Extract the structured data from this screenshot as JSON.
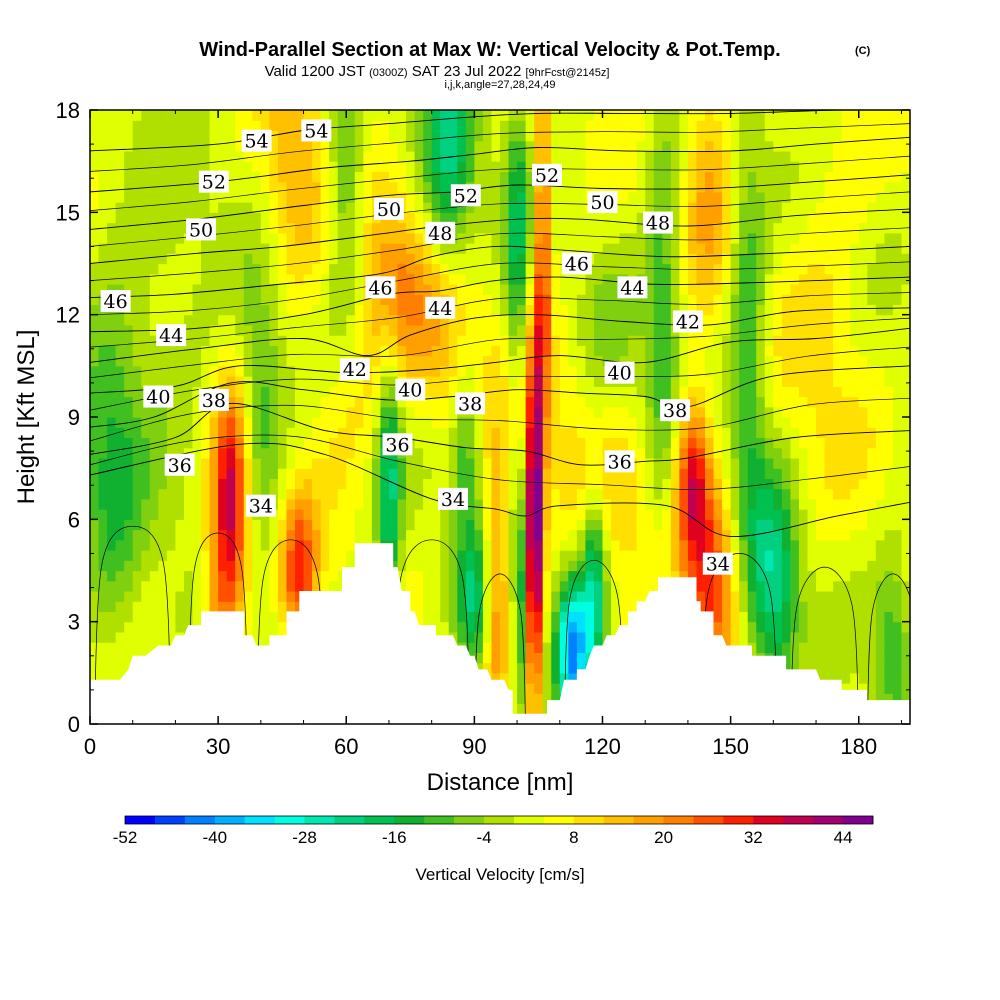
{
  "chart_data": {
    "type": "heatmap",
    "title": "Wind-Parallel Section at Max W: Vertical Velocity & Pot.Temp.",
    "title_mark": "(C)",
    "subtitle": {
      "main_a": "Valid 1200 JST",
      "small_a": "(0300Z)",
      "main_b": "SAT 23 Jul 2022",
      "small_b": "[9hrFcst@2145z]"
    },
    "indices_note": "i,j,k,angle=27,28,24,49",
    "xlabel": "Distance [nm]",
    "ylabel": "Height [Kft MSL]",
    "xlim": [
      0,
      192
    ],
    "ylim": [
      0,
      18
    ],
    "xticks": [
      "0",
      "30",
      "60",
      "90",
      "120",
      "150",
      "180"
    ],
    "yticks": [
      "0",
      "3",
      "6",
      "9",
      "12",
      "15",
      "18"
    ],
    "colorbar": {
      "label": "Vertical Velocity [cm/s]",
      "ticks": [
        "-52",
        "-40",
        "-28",
        "-16",
        "-4",
        "8",
        "20",
        "32",
        "44"
      ],
      "colors": [
        "#0000ff",
        "#0040ff",
        "#0080ff",
        "#00b0ff",
        "#00e0ff",
        "#00ffe0",
        "#00e8b0",
        "#00d080",
        "#00c050",
        "#10b030",
        "#40c020",
        "#80d010",
        "#b0e000",
        "#e0ff00",
        "#ffff00",
        "#ffe000",
        "#ffc000",
        "#ffa000",
        "#ff8000",
        "#ff5000",
        "#ff2000",
        "#e00020",
        "#c00050",
        "#a00070",
        "#800090"
      ]
    },
    "terrain_kft": [
      [
        0,
        1.3
      ],
      [
        7,
        1.3
      ],
      [
        9,
        1.6
      ],
      [
        10,
        2.0
      ],
      [
        13,
        2.0
      ],
      [
        16,
        2.3
      ],
      [
        19,
        2.3
      ],
      [
        20,
        2.6
      ],
      [
        22,
        2.6
      ],
      [
        23,
        2.9
      ],
      [
        26,
        2.9
      ],
      [
        26,
        3.3
      ],
      [
        36,
        3.3
      ],
      [
        36,
        2.6
      ],
      [
        38,
        2.6
      ],
      [
        39,
        2.3
      ],
      [
        42,
        2.3
      ],
      [
        42,
        2.6
      ],
      [
        46,
        2.6
      ],
      [
        46,
        3.3
      ],
      [
        49,
        3.3
      ],
      [
        49,
        3.9
      ],
      [
        59,
        3.9
      ],
      [
        59,
        4.6
      ],
      [
        62,
        4.6
      ],
      [
        62,
        5.3
      ],
      [
        71,
        5.3
      ],
      [
        71,
        4.6
      ],
      [
        72,
        4.6
      ],
      [
        73,
        3.9
      ],
      [
        75,
        3.9
      ],
      [
        75,
        3.3
      ],
      [
        76,
        3.3
      ],
      [
        77,
        2.9
      ],
      [
        81,
        2.9
      ],
      [
        81,
        2.6
      ],
      [
        85,
        2.6
      ],
      [
        86,
        2.3
      ],
      [
        88,
        2.3
      ],
      [
        89,
        2.0
      ],
      [
        90,
        2.0
      ],
      [
        91,
        1.6
      ],
      [
        93,
        1.6
      ],
      [
        94,
        1.3
      ],
      [
        97,
        1.3
      ],
      [
        98,
        1.0
      ],
      [
        99,
        1.0
      ],
      [
        99,
        0.3
      ],
      [
        107,
        0.3
      ],
      [
        107,
        0.7
      ],
      [
        110,
        0.7
      ],
      [
        111,
        1.3
      ],
      [
        114,
        1.3
      ],
      [
        114,
        1.6
      ],
      [
        116,
        1.6
      ],
      [
        117,
        2.0
      ],
      [
        118,
        2.3
      ],
      [
        120,
        2.3
      ],
      [
        121,
        2.6
      ],
      [
        123,
        2.6
      ],
      [
        124,
        2.9
      ],
      [
        126,
        2.9
      ],
      [
        126,
        3.3
      ],
      [
        128,
        3.3
      ],
      [
        128,
        3.6
      ],
      [
        130,
        3.6
      ],
      [
        131,
        3.9
      ],
      [
        133,
        3.9
      ],
      [
        133,
        4.3
      ],
      [
        142,
        4.3
      ],
      [
        142,
        3.6
      ],
      [
        143,
        3.6
      ],
      [
        143,
        3.3
      ],
      [
        146,
        3.3
      ],
      [
        146,
        2.6
      ],
      [
        148,
        2.6
      ],
      [
        149,
        2.3
      ],
      [
        155,
        2.3
      ],
      [
        155,
        2.0
      ],
      [
        163,
        2.0
      ],
      [
        163,
        1.6
      ],
      [
        170,
        1.6
      ],
      [
        171,
        1.3
      ],
      [
        176,
        1.3
      ],
      [
        176,
        1.0
      ],
      [
        182,
        1.0
      ],
      [
        182,
        0.7
      ],
      [
        192,
        0.7
      ]
    ],
    "w_features": [
      {
        "x": 33,
        "z": 6.4,
        "sx": 3.0,
        "sz": 2.4,
        "w": 36
      },
      {
        "x": 30,
        "z": 3.0,
        "sx": 3.0,
        "sz": 2.0,
        "w": 14
      },
      {
        "x": 49,
        "z": 4.5,
        "sx": 3.0,
        "sz": 1.6,
        "w": 26
      },
      {
        "x": 104,
        "z": 5.5,
        "sx": 1.4,
        "sz": 3.5,
        "w": 50
      },
      {
        "x": 106,
        "z": 14.0,
        "sx": 1.3,
        "sz": 4.0,
        "w": 26
      },
      {
        "x": 95,
        "z": 4.0,
        "sx": 2.2,
        "sz": 2.6,
        "w": 22
      },
      {
        "x": 141,
        "z": 7.2,
        "sx": 3.0,
        "sz": 1.8,
        "w": 32
      },
      {
        "x": 146,
        "z": 4.0,
        "sx": 4.0,
        "sz": 2.0,
        "w": 26
      },
      {
        "x": 82,
        "z": 11.5,
        "sx": 6.0,
        "sz": 2.0,
        "w": 14
      },
      {
        "x": 70,
        "z": 13.0,
        "sx": 5.0,
        "sz": 2.0,
        "w": 16
      },
      {
        "x": 48,
        "z": 16.0,
        "sx": 5.0,
        "sz": 2.5,
        "w": 14
      },
      {
        "x": 110,
        "z": 10.0,
        "sx": 10.0,
        "sz": 2.5,
        "w": 6
      },
      {
        "x": 145,
        "z": 16.0,
        "sx": 4.0,
        "sz": 2.5,
        "w": 14
      },
      {
        "x": 172,
        "z": 12.0,
        "sx": 8.0,
        "sz": 4.0,
        "w": 7
      },
      {
        "x": 60,
        "z": 9.5,
        "sx": 6.0,
        "sz": 2.0,
        "w": 8
      },
      {
        "x": 125,
        "z": 7.0,
        "sx": 6.0,
        "sz": 2.0,
        "w": 8
      },
      {
        "x": 113,
        "z": 2.2,
        "sx": 2.5,
        "sz": 1.5,
        "w": -40
      },
      {
        "x": 118,
        "z": 4.0,
        "sx": 2.0,
        "sz": 2.0,
        "w": -26
      },
      {
        "x": 90,
        "z": 3.5,
        "sx": 3.0,
        "sz": 1.5,
        "w": -20
      },
      {
        "x": 101,
        "z": 4.0,
        "sx": 1.2,
        "sz": 2.5,
        "w": -18
      },
      {
        "x": 84,
        "z": 16.5,
        "sx": 4.0,
        "sz": 2.5,
        "w": -22
      },
      {
        "x": 70,
        "z": 7.0,
        "sx": 2.0,
        "sz": 3.0,
        "w": -22
      },
      {
        "x": 160,
        "z": 4.0,
        "sx": 4.0,
        "sz": 2.5,
        "w": -24
      },
      {
        "x": 154,
        "z": 11.0,
        "sx": 3.0,
        "sz": 4.0,
        "w": -16
      },
      {
        "x": 134,
        "z": 12.5,
        "sx": 3.0,
        "sz": 4.0,
        "w": -14
      },
      {
        "x": 100,
        "z": 14.0,
        "sx": 2.0,
        "sz": 3.0,
        "w": -18
      },
      {
        "x": 40,
        "z": 9.0,
        "sx": 4.0,
        "sz": 2.5,
        "w": -14
      },
      {
        "x": 60,
        "z": 16.0,
        "sx": 3.0,
        "sz": 3.0,
        "w": -14
      },
      {
        "x": 5,
        "z": 7.0,
        "sx": 5.0,
        "sz": 4.0,
        "w": -12
      },
      {
        "x": 188,
        "z": 2.5,
        "sx": 3.0,
        "sz": 2.0,
        "w": -12
      },
      {
        "x": 15,
        "z": 11.0,
        "sx": 10.0,
        "sz": 3.0,
        "w": -6
      },
      {
        "x": 122,
        "z": 11.0,
        "sx": 5.0,
        "sz": 2.0,
        "w": -8
      },
      {
        "x": 88,
        "z": 8.0,
        "sx": 2.5,
        "sz": 2.0,
        "w": -14
      }
    ],
    "theta_contours": [
      {
        "value": 34,
        "x": [
          0,
          35,
          55,
          80,
          95,
          102,
          110,
          135,
          150,
          175,
          192
        ],
        "z": [
          7.3,
          8.2,
          7.9,
          6.6,
          6.3,
          6.1,
          6.4,
          6.4,
          5.5,
          6.1,
          6.5
        ]
      },
      {
        "value": 36,
        "x": [
          0,
          20,
          33,
          55,
          72,
          88,
          102,
          115,
          130,
          140,
          165,
          192
        ],
        "z": [
          7.9,
          8.4,
          9.4,
          8.6,
          8.4,
          8.1,
          8.0,
          7.6,
          7.7,
          7.8,
          8.4,
          8.6
        ]
      },
      {
        "value": 38,
        "x": [
          0,
          15,
          33,
          50,
          70,
          85,
          100,
          115,
          130,
          140,
          160,
          192
        ],
        "z": [
          8.7,
          9.0,
          10.0,
          9.8,
          9.5,
          9.6,
          9.8,
          9.7,
          9.6,
          9.3,
          10.2,
          10.5
        ]
      },
      {
        "value": 40,
        "x": [
          0,
          20,
          35,
          60,
          80,
          95,
          110,
          130,
          150,
          170,
          192
        ],
        "z": [
          9.7,
          9.9,
          10.5,
          10.3,
          10.4,
          10.6,
          10.8,
          10.6,
          11.2,
          11.3,
          11.6
        ]
      },
      {
        "value": 42,
        "x": [
          0,
          25,
          50,
          65,
          75,
          90,
          105,
          125,
          145,
          165,
          192
        ],
        "z": [
          10.6,
          11.0,
          11.3,
          10.8,
          11.4,
          11.9,
          12.0,
          11.8,
          11.7,
          12.1,
          12.2
        ]
      },
      {
        "value": 44,
        "x": [
          0,
          25,
          50,
          70,
          82,
          95,
          110,
          130,
          145,
          170,
          192
        ],
        "z": [
          11.5,
          11.6,
          12.0,
          12.6,
          12.7,
          13.0,
          13.1,
          12.9,
          12.9,
          13.0,
          13.1
        ]
      },
      {
        "value": 46,
        "x": [
          0,
          20,
          45,
          68,
          80,
          95,
          110,
          135,
          160,
          192
        ],
        "z": [
          12.5,
          12.6,
          12.9,
          13.2,
          13.7,
          14.0,
          13.9,
          13.7,
          13.8,
          14.0
        ]
      },
      {
        "value": 48,
        "x": [
          0,
          25,
          45,
          70,
          82,
          100,
          115,
          140,
          165,
          192
        ],
        "z": [
          13.5,
          13.8,
          14.0,
          14.4,
          14.6,
          14.8,
          14.8,
          14.6,
          14.9,
          15.1
        ]
      },
      {
        "value": 50,
        "x": [
          0,
          25,
          50,
          70,
          85,
          100,
          120,
          145,
          170,
          192
        ],
        "z": [
          14.5,
          14.8,
          15.2,
          15.5,
          15.6,
          15.8,
          15.7,
          15.7,
          15.9,
          16.1
        ]
      },
      {
        "value": 52,
        "x": [
          0,
          30,
          55,
          75,
          90,
          105,
          125,
          150,
          170,
          192
        ],
        "z": [
          15.6,
          15.9,
          16.3,
          16.5,
          16.7,
          16.9,
          16.8,
          16.8,
          17.0,
          17.2
        ]
      },
      {
        "value": 54,
        "x": [
          0,
          30,
          50,
          70,
          90,
          105,
          125,
          150,
          175,
          192
        ],
        "z": [
          16.8,
          17.0,
          17.4,
          17.6,
          17.8,
          17.9,
          17.9,
          17.9,
          18.0,
          18.0
        ]
      }
    ],
    "contour_labels": [
      {
        "text": "54",
        "x": 39,
        "z": 17.1
      },
      {
        "text": "54",
        "x": 53,
        "z": 17.4
      },
      {
        "text": "52",
        "x": 29,
        "z": 15.9
      },
      {
        "text": "52",
        "x": 88,
        "z": 15.5
      },
      {
        "text": "52",
        "x": 107,
        "z": 16.1
      },
      {
        "text": "50",
        "x": 26,
        "z": 14.5
      },
      {
        "text": "50",
        "x": 70,
        "z": 15.1
      },
      {
        "text": "50",
        "x": 120,
        "z": 15.3
      },
      {
        "text": "48",
        "x": 82,
        "z": 14.4
      },
      {
        "text": "48",
        "x": 133,
        "z": 14.7
      },
      {
        "text": "46",
        "x": 6,
        "z": 12.4
      },
      {
        "text": "46",
        "x": 68,
        "z": 12.8
      },
      {
        "text": "46",
        "x": 114,
        "z": 13.5
      },
      {
        "text": "44",
        "x": 19,
        "z": 11.4
      },
      {
        "text": "44",
        "x": 82,
        "z": 12.2
      },
      {
        "text": "44",
        "x": 127,
        "z": 12.8
      },
      {
        "text": "42",
        "x": 62,
        "z": 10.4
      },
      {
        "text": "42",
        "x": 140,
        "z": 11.8
      },
      {
        "text": "40",
        "x": 16,
        "z": 9.6
      },
      {
        "text": "40",
        "x": 75,
        "z": 9.8
      },
      {
        "text": "40",
        "x": 124,
        "z": 10.3
      },
      {
        "text": "38",
        "x": 29,
        "z": 9.5
      },
      {
        "text": "38",
        "x": 89,
        "z": 9.4
      },
      {
        "text": "38",
        "x": 137,
        "z": 9.2
      },
      {
        "text": "36",
        "x": 21,
        "z": 7.6
      },
      {
        "text": "36",
        "x": 72,
        "z": 8.2
      },
      {
        "text": "36",
        "x": 124,
        "z": 7.7
      },
      {
        "text": "34",
        "x": 40,
        "z": 6.4
      },
      {
        "text": "34",
        "x": 85,
        "z": 6.6
      },
      {
        "text": "34",
        "x": 147,
        "z": 4.7
      }
    ]
  }
}
